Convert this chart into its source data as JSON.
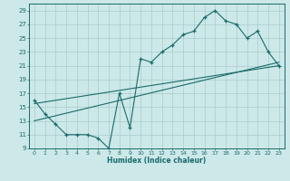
{
  "bg_color": "#cce8e8",
  "grid_color": "#aacccc",
  "line_color": "#1a6b6b",
  "xlabel": "Humidex (Indice chaleur)",
  "xlim": [
    -0.5,
    23.5
  ],
  "ylim": [
    9,
    30
  ],
  "yticks": [
    9,
    11,
    13,
    15,
    17,
    19,
    21,
    23,
    25,
    27,
    29
  ],
  "xticks": [
    0,
    1,
    2,
    3,
    4,
    5,
    6,
    7,
    8,
    9,
    10,
    11,
    12,
    13,
    14,
    15,
    16,
    17,
    18,
    19,
    20,
    21,
    22,
    23
  ],
  "curve_x": [
    0,
    1,
    2,
    3,
    4,
    5,
    6,
    7,
    8,
    9,
    10,
    11,
    12,
    13,
    14,
    15,
    16,
    17,
    18,
    19,
    20,
    21,
    22,
    23
  ],
  "curve_y": [
    16,
    14,
    12.5,
    11,
    11,
    11,
    10.5,
    9,
    17,
    12,
    22,
    21.5,
    23,
    24,
    25.5,
    26,
    28,
    29,
    27.5,
    27,
    25,
    26,
    23,
    21
  ],
  "line1_x": [
    0,
    23
  ],
  "line1_y": [
    15.5,
    21.0
  ],
  "line2_x": [
    0,
    23
  ],
  "line2_y": [
    13.0,
    21.5
  ]
}
